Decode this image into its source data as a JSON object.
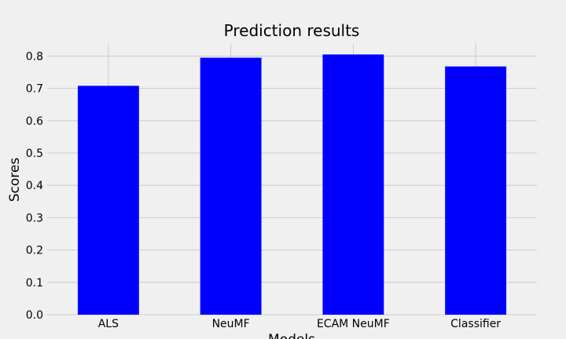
{
  "chart_data": {
    "type": "bar",
    "title": "Prediction results",
    "xlabel": "Models",
    "ylabel": "Scores",
    "categories": [
      "ALS",
      "NeuMF",
      "ECAM NeuMF",
      "Classifier"
    ],
    "values": [
      0.708,
      0.795,
      0.805,
      0.768
    ],
    "ylim": [
      0,
      0.84
    ],
    "yticks": [
      "0.0",
      "0.1",
      "0.2",
      "0.3",
      "0.4",
      "0.5",
      "0.6",
      "0.7",
      "0.8"
    ],
    "bar_color": "#0000ff",
    "background_color": "#f0f0f0",
    "grid_color": "#cbcbcb",
    "grid": true
  }
}
